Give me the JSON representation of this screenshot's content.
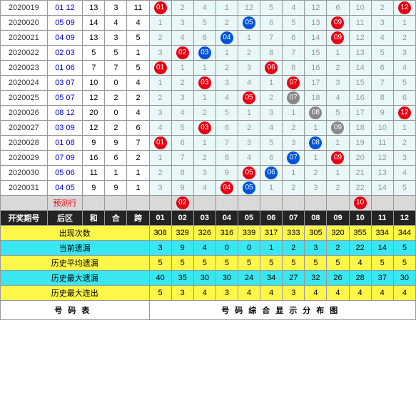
{
  "grid_cols": 12,
  "rows": [
    {
      "iss": "2020019",
      "hz": "01 12",
      "he": 13,
      "hb": 3,
      "ku": 11,
      "hits": [
        {
          "p": 1,
          "c": "red",
          "v": "01"
        },
        {
          "p": 12,
          "c": "red",
          "v": "12"
        }
      ],
      "miss": [
        null,
        2,
        4,
        1,
        12,
        5,
        4,
        12,
        6,
        10,
        2,
        null
      ]
    },
    {
      "iss": "2020020",
      "hz": "05 09",
      "he": 14,
      "hb": 4,
      "ku": 4,
      "hits": [
        {
          "p": 5,
          "c": "blue",
          "v": "05"
        },
        {
          "p": 9,
          "c": "red",
          "v": "09"
        }
      ],
      "miss": [
        1,
        3,
        5,
        2,
        null,
        6,
        5,
        13,
        null,
        11,
        3,
        1
      ]
    },
    {
      "iss": "2020021",
      "hz": "04 09",
      "he": 13,
      "hb": 3,
      "ku": 5,
      "hits": [
        {
          "p": 4,
          "c": "blue",
          "v": "04"
        },
        {
          "p": 9,
          "c": "red",
          "v": "09"
        }
      ],
      "miss": [
        2,
        4,
        6,
        null,
        1,
        7,
        6,
        14,
        null,
        12,
        4,
        2
      ]
    },
    {
      "iss": "2020022",
      "hz": "02 03",
      "he": 5,
      "hb": 5,
      "ku": 1,
      "hits": [
        {
          "p": 2,
          "c": "red",
          "v": "02"
        },
        {
          "p": 3,
          "c": "blue",
          "v": "03"
        }
      ],
      "miss": [
        3,
        null,
        null,
        1,
        2,
        8,
        7,
        15,
        1,
        13,
        5,
        3
      ]
    },
    {
      "iss": "2020023",
      "hz": "01 06",
      "he": 7,
      "hb": 7,
      "ku": 5,
      "hits": [
        {
          "p": 1,
          "c": "red",
          "v": "01"
        },
        {
          "p": 6,
          "c": "red",
          "v": "06"
        }
      ],
      "miss": [
        null,
        1,
        1,
        2,
        3,
        null,
        8,
        16,
        2,
        14,
        6,
        4
      ]
    },
    {
      "iss": "2020024",
      "hz": "03 07",
      "he": 10,
      "hb": 0,
      "ku": 4,
      "hits": [
        {
          "p": 3,
          "c": "red",
          "v": "03"
        },
        {
          "p": 7,
          "c": "red",
          "v": "07"
        }
      ],
      "miss": [
        1,
        2,
        null,
        3,
        4,
        1,
        null,
        17,
        3,
        15,
        7,
        5
      ]
    },
    {
      "iss": "2020025",
      "hz": "05 07",
      "he": 12,
      "hb": 2,
      "ku": 2,
      "hits": [
        {
          "p": 5,
          "c": "red",
          "v": "05"
        },
        {
          "p": 7,
          "c": "gray",
          "v": "07"
        }
      ],
      "miss": [
        2,
        3,
        1,
        4,
        null,
        2,
        null,
        18,
        4,
        16,
        8,
        6
      ]
    },
    {
      "iss": "2020026",
      "hz": "08 12",
      "he": 20,
      "hb": 0,
      "ku": 4,
      "hits": [
        {
          "p": 8,
          "c": "gray",
          "v": "08"
        },
        {
          "p": 12,
          "c": "red",
          "v": "12"
        }
      ],
      "miss": [
        3,
        4,
        2,
        5,
        1,
        3,
        1,
        null,
        5,
        17,
        9,
        null
      ]
    },
    {
      "iss": "2020027",
      "hz": "03 09",
      "he": 12,
      "hb": 2,
      "ku": 6,
      "hits": [
        {
          "p": 3,
          "c": "red",
          "v": "03"
        },
        {
          "p": 9,
          "c": "gray",
          "v": "09"
        }
      ],
      "miss": [
        4,
        5,
        null,
        6,
        2,
        4,
        2,
        1,
        null,
        18,
        10,
        1
      ]
    },
    {
      "iss": "2020028",
      "hz": "01 08",
      "he": 9,
      "hb": 9,
      "ku": 7,
      "hits": [
        {
          "p": 1,
          "c": "red",
          "v": "01"
        },
        {
          "p": 8,
          "c": "blue",
          "v": "08"
        }
      ],
      "miss": [
        null,
        6,
        1,
        7,
        3,
        5,
        3,
        null,
        1,
        19,
        11,
        2
      ]
    },
    {
      "iss": "2020029",
      "hz": "07 09",
      "he": 16,
      "hb": 6,
      "ku": 2,
      "hits": [
        {
          "p": 7,
          "c": "blue",
          "v": "07"
        },
        {
          "p": 9,
          "c": "red",
          "v": "09"
        }
      ],
      "miss": [
        1,
        7,
        2,
        8,
        4,
        6,
        null,
        1,
        null,
        20,
        12,
        3
      ]
    },
    {
      "iss": "2020030",
      "hz": "05 06",
      "he": 11,
      "hb": 1,
      "ku": 1,
      "hits": [
        {
          "p": 5,
          "c": "red",
          "v": "05"
        },
        {
          "p": 6,
          "c": "blue",
          "v": "06"
        }
      ],
      "miss": [
        2,
        8,
        3,
        9,
        null,
        null,
        1,
        2,
        1,
        21,
        13,
        4
      ]
    },
    {
      "iss": "2020031",
      "hz": "04 05",
      "he": 9,
      "hb": 9,
      "ku": 1,
      "hits": [
        {
          "p": 4,
          "c": "red",
          "v": "04"
        },
        {
          "p": 5,
          "c": "blue",
          "v": "05"
        }
      ],
      "miss": [
        3,
        9,
        4,
        null,
        null,
        1,
        2,
        3,
        2,
        22,
        14,
        5
      ]
    }
  ],
  "pred": {
    "label": "预测行",
    "hits": [
      {
        "p": 2,
        "c": "red",
        "v": "02"
      },
      {
        "p": 10,
        "c": "red",
        "v": "10"
      }
    ]
  },
  "hdr": {
    "c1": "开奖期号",
    "c2": "后区",
    "c3": "和",
    "c4": "合",
    "c5": "跨",
    "nums": [
      "01",
      "02",
      "03",
      "04",
      "05",
      "06",
      "07",
      "08",
      "09",
      "10",
      "11",
      "12"
    ]
  },
  "stats": [
    {
      "lbl": "出现次数",
      "cls": "yel",
      "v": [
        308,
        329,
        326,
        316,
        339,
        317,
        333,
        305,
        320,
        355,
        334,
        344
      ]
    },
    {
      "lbl": "当前遗漏",
      "cls": "cyan",
      "v": [
        3,
        9,
        4,
        0,
        0,
        1,
        2,
        3,
        2,
        22,
        14,
        5
      ]
    },
    {
      "lbl": "历史平均遗漏",
      "cls": "yel",
      "v": [
        5,
        5,
        5,
        5,
        5,
        5,
        5,
        5,
        5,
        4,
        5,
        5
      ]
    },
    {
      "lbl": "历史最大遗漏",
      "cls": "cyan",
      "v": [
        40,
        35,
        30,
        30,
        24,
        34,
        27,
        32,
        26,
        28,
        37,
        30
      ]
    },
    {
      "lbl": "历史最大连出",
      "cls": "yel",
      "v": [
        5,
        3,
        4,
        3,
        4,
        4,
        3,
        4,
        4,
        4,
        4,
        4
      ]
    }
  ],
  "foot": {
    "left": "号码表",
    "right": "号码综合显示分布图"
  }
}
